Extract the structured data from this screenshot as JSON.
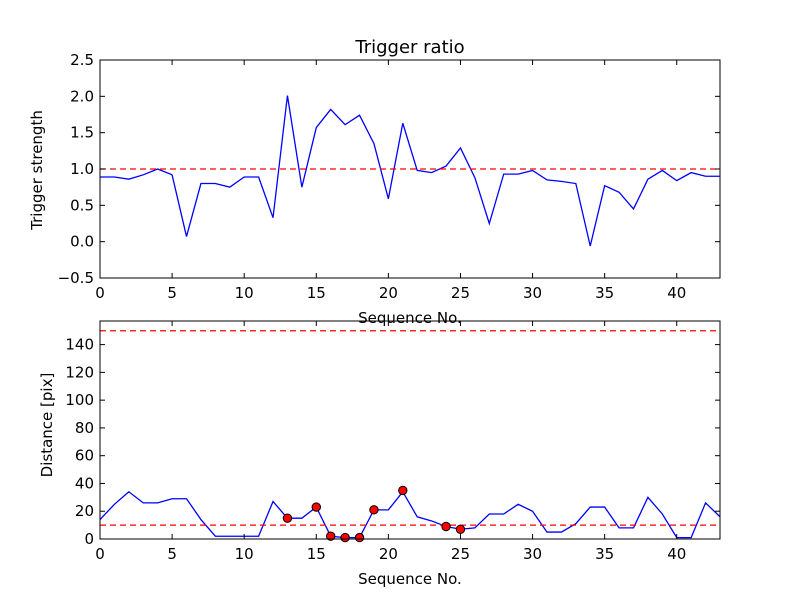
{
  "chart_data": [
    {
      "type": "line",
      "title": "Trigger ratio",
      "xlabel": "Sequence No.",
      "ylabel": "Trigger strength",
      "xlim": [
        0,
        43
      ],
      "ylim": [
        -0.5,
        2.5
      ],
      "xticks": [
        0,
        5,
        10,
        15,
        20,
        25,
        30,
        35,
        40
      ],
      "yticks": [
        -0.5,
        0.0,
        0.5,
        1.0,
        1.5,
        2.0,
        2.5
      ],
      "xtick_labels": [
        "0",
        "5",
        "10",
        "15",
        "20",
        "25",
        "30",
        "35",
        "40"
      ],
      "ytick_labels": [
        "−0.5",
        "0.0",
        "0.5",
        "1.0",
        "1.5",
        "2.0",
        "2.5"
      ],
      "grid": false,
      "series": [
        {
          "color": "#0000ff",
          "x": [
            0,
            1,
            2,
            3,
            4,
            5,
            6,
            7,
            8,
            9,
            10,
            11,
            12,
            13,
            14,
            15,
            16,
            17,
            18,
            19,
            20,
            21,
            22,
            23,
            24,
            25,
            26,
            27,
            28,
            29,
            30,
            31,
            32,
            33,
            34,
            35,
            36,
            37,
            38,
            39,
            40,
            41,
            42,
            43
          ],
          "y": [
            0.89,
            0.89,
            0.86,
            0.92,
            1.0,
            0.92,
            0.07,
            0.8,
            0.8,
            0.75,
            0.89,
            0.89,
            0.33,
            2.01,
            0.75,
            1.57,
            1.82,
            1.61,
            1.74,
            1.35,
            0.59,
            1.63,
            0.98,
            0.95,
            1.04,
            1.29,
            0.88,
            0.25,
            0.93,
            0.93,
            0.98,
            0.85,
            0.83,
            0.8,
            -0.06,
            0.77,
            0.68,
            0.45,
            0.86,
            0.98,
            0.84,
            0.95,
            0.9,
            0.9
          ]
        }
      ],
      "hlines": [
        {
          "y": 1.0,
          "color": "#ff0000",
          "style": "dashed"
        }
      ]
    },
    {
      "type": "line",
      "title": "",
      "xlabel": "Sequence No.",
      "ylabel": "Distance [pix]",
      "xlim": [
        0,
        43
      ],
      "ylim": [
        0,
        157
      ],
      "xticks": [
        0,
        5,
        10,
        15,
        20,
        25,
        30,
        35,
        40
      ],
      "yticks": [
        0,
        20,
        40,
        60,
        80,
        100,
        120,
        140
      ],
      "xtick_labels": [
        "0",
        "5",
        "10",
        "15",
        "20",
        "25",
        "30",
        "35",
        "40"
      ],
      "ytick_labels": [
        "0",
        "20",
        "40",
        "60",
        "80",
        "100",
        "120",
        "140"
      ],
      "grid": false,
      "series": [
        {
          "color": "#0000ff",
          "x": [
            0,
            1,
            2,
            3,
            4,
            5,
            6,
            7,
            8,
            9,
            10,
            11,
            12,
            13,
            14,
            15,
            16,
            17,
            18,
            19,
            20,
            21,
            22,
            23,
            24,
            25,
            26,
            27,
            28,
            29,
            30,
            31,
            32,
            33,
            34,
            35,
            36,
            37,
            38,
            39,
            40,
            41,
            42,
            43
          ],
          "y": [
            14,
            25,
            34,
            26,
            26,
            29,
            29,
            14,
            2,
            2,
            2,
            2,
            27,
            15,
            15,
            23,
            2,
            1,
            1,
            21,
            21,
            34,
            16,
            13,
            9,
            7,
            8,
            18,
            18,
            25,
            20,
            5,
            5,
            11,
            23,
            23,
            8,
            8,
            30,
            18,
            1,
            1,
            26,
            16
          ]
        }
      ],
      "markers": {
        "color": "#ff0000",
        "edge": "#000000",
        "x": [
          13,
          15,
          16,
          17,
          18,
          19,
          21,
          24,
          25
        ],
        "y": [
          15,
          23,
          2,
          1,
          1,
          21,
          35,
          9,
          7
        ]
      },
      "hlines": [
        {
          "y": 150,
          "color": "#ff0000",
          "style": "dashed"
        },
        {
          "y": 10,
          "color": "#ff0000",
          "style": "dashed"
        }
      ]
    }
  ]
}
